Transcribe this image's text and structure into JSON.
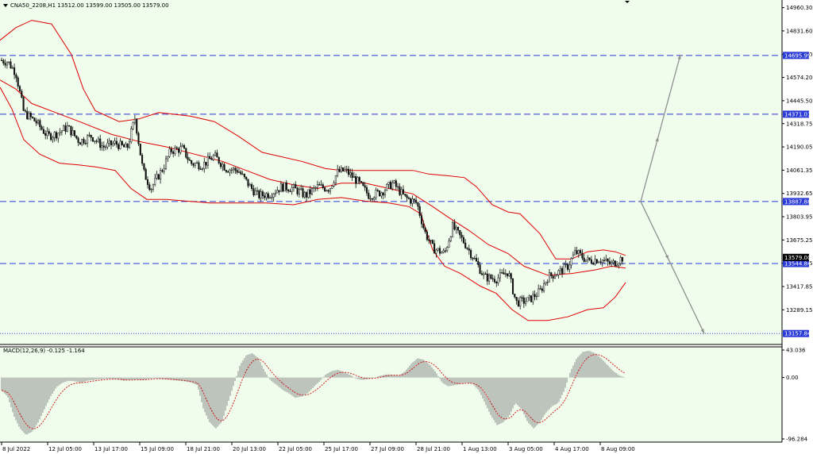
{
  "header": {
    "symbol_line": "CNA50_2208,H1  13512.00 13599.00 13505.00 13579.00"
  },
  "macd": {
    "label": "MACD(12,26,9) -0.125 -1.164",
    "y_ticks": [
      "43.036",
      "0.00",
      "-96.284"
    ]
  },
  "colors": {
    "background": "#f0fdec",
    "level_line": "#2a3bd6",
    "bands": "#e00000",
    "candle": "#111111",
    "forecast_arrow": "#909090",
    "histogram": "#8a8a8a",
    "signal": "#d02020"
  },
  "chart_data": {
    "type": "line",
    "title": "CNA50_2208,H1",
    "ohlc_last": {
      "open": 13512.0,
      "high": 13599.0,
      "low": 13505.0,
      "close": 13579.0
    },
    "y_ticks": [
      "14960.30",
      "14831.60",
      "14702.90",
      "14574.20",
      "14445.50",
      "14318.75",
      "14190.05",
      "14061.35",
      "13932.65",
      "13803.95",
      "13675.25",
      "13546.55",
      "13417.85",
      "13289.15"
    ],
    "x_ticks": [
      "8 Jul 2022",
      "12 Jul 05:00",
      "13 Jul 17:00",
      "15 Jul 09:00",
      "18 Jul 21:00",
      "20 Jul 13:00",
      "22 Jul 05:00",
      "25 Jul 17:00",
      "27 Jul 09:00",
      "28 Jul 21:00",
      "1 Aug 13:00",
      "3 Aug 05:00",
      "4 Aug 17:00",
      "8 Aug 09:00"
    ],
    "ylim": [
      13150,
      14985
    ],
    "levels": [
      {
        "value": 14695.99,
        "label": "14695.99"
      },
      {
        "value": 14371.01,
        "label": "14371.01"
      },
      {
        "value": 13887.88,
        "label": "13887.88"
      },
      {
        "value": 13544.84,
        "label": "13544.84"
      },
      {
        "value": 13157.84,
        "label": "13157.84",
        "style": "dotted"
      }
    ],
    "current_price": {
      "value": 13579.0,
      "label": "13579.00"
    },
    "price_path": [
      [
        0,
        14670
      ],
      [
        10,
        14660
      ],
      [
        20,
        14600
      ],
      [
        30,
        14380
      ],
      [
        45,
        14330
      ],
      [
        60,
        14250
      ],
      [
        70,
        14260
      ],
      [
        85,
        14300
      ],
      [
        100,
        14220
      ],
      [
        115,
        14250
      ],
      [
        130,
        14190
      ],
      [
        145,
        14210
      ],
      [
        160,
        14180
      ],
      [
        170,
        14350
      ],
      [
        180,
        14060
      ],
      [
        190,
        13960
      ],
      [
        205,
        14070
      ],
      [
        215,
        14170
      ],
      [
        230,
        14180
      ],
      [
        240,
        14100
      ],
      [
        255,
        14090
      ],
      [
        270,
        14140
      ],
      [
        285,
        14070
      ],
      [
        300,
        14060
      ],
      [
        315,
        13970
      ],
      [
        325,
        13920
      ],
      [
        340,
        13930
      ],
      [
        355,
        13970
      ],
      [
        370,
        13960
      ],
      [
        385,
        13920
      ],
      [
        400,
        13970
      ],
      [
        415,
        13960
      ],
      [
        425,
        14050
      ],
      [
        435,
        14060
      ],
      [
        450,
        14000
      ],
      [
        465,
        13920
      ],
      [
        480,
        13940
      ],
      [
        495,
        13990
      ],
      [
        510,
        13910
      ],
      [
        525,
        13880
      ],
      [
        535,
        13720
      ],
      [
        545,
        13630
      ],
      [
        560,
        13600
      ],
      [
        570,
        13750
      ],
      [
        585,
        13660
      ],
      [
        600,
        13550
      ],
      [
        610,
        13470
      ],
      [
        625,
        13460
      ],
      [
        640,
        13500
      ],
      [
        650,
        13330
      ],
      [
        665,
        13340
      ],
      [
        680,
        13390
      ],
      [
        690,
        13470
      ],
      [
        705,
        13500
      ],
      [
        715,
        13530
      ],
      [
        725,
        13610
      ],
      [
        740,
        13560
      ],
      [
        755,
        13570
      ],
      [
        770,
        13540
      ],
      [
        785,
        13579
      ]
    ],
    "bollinger_upper": [
      [
        0,
        14780
      ],
      [
        20,
        14850
      ],
      [
        40,
        14890
      ],
      [
        65,
        14870
      ],
      [
        90,
        14700
      ],
      [
        105,
        14510
      ],
      [
        120,
        14390
      ],
      [
        150,
        14330
      ],
      [
        175,
        14345
      ],
      [
        200,
        14380
      ],
      [
        240,
        14360
      ],
      [
        270,
        14330
      ],
      [
        300,
        14250
      ],
      [
        330,
        14160
      ],
      [
        350,
        14140
      ],
      [
        380,
        14110
      ],
      [
        410,
        14070
      ],
      [
        430,
        14060
      ],
      [
        460,
        14060
      ],
      [
        500,
        14060
      ],
      [
        520,
        14060
      ],
      [
        540,
        14040
      ],
      [
        565,
        14030
      ],
      [
        585,
        14020
      ],
      [
        600,
        13970
      ],
      [
        620,
        13870
      ],
      [
        640,
        13830
      ],
      [
        655,
        13820
      ],
      [
        680,
        13710
      ],
      [
        700,
        13570
      ],
      [
        720,
        13570
      ],
      [
        740,
        13610
      ],
      [
        760,
        13620
      ],
      [
        775,
        13610
      ],
      [
        788,
        13590
      ]
    ],
    "bollinger_middle": [
      [
        0,
        14560
      ],
      [
        20,
        14510
      ],
      [
        40,
        14430
      ],
      [
        70,
        14380
      ],
      [
        100,
        14330
      ],
      [
        140,
        14260
      ],
      [
        175,
        14220
      ],
      [
        210,
        14190
      ],
      [
        245,
        14150
      ],
      [
        280,
        14110
      ],
      [
        310,
        14060
      ],
      [
        340,
        14010
      ],
      [
        370,
        13980
      ],
      [
        400,
        13960
      ],
      [
        430,
        13990
      ],
      [
        460,
        13990
      ],
      [
        490,
        13960
      ],
      [
        520,
        13930
      ],
      [
        545,
        13860
      ],
      [
        565,
        13800
      ],
      [
        590,
        13730
      ],
      [
        615,
        13650
      ],
      [
        640,
        13600
      ],
      [
        660,
        13530
      ],
      [
        690,
        13480
      ],
      [
        720,
        13490
      ],
      [
        750,
        13510
      ],
      [
        770,
        13530
      ],
      [
        788,
        13520
      ]
    ],
    "bollinger_lower": [
      [
        0,
        14520
      ],
      [
        15,
        14400
      ],
      [
        30,
        14230
      ],
      [
        50,
        14150
      ],
      [
        75,
        14100
      ],
      [
        100,
        14090
      ],
      [
        120,
        14080
      ],
      [
        145,
        14060
      ],
      [
        165,
        13960
      ],
      [
        185,
        13900
      ],
      [
        210,
        13900
      ],
      [
        235,
        13890
      ],
      [
        265,
        13880
      ],
      [
        300,
        13880
      ],
      [
        335,
        13880
      ],
      [
        370,
        13870
      ],
      [
        400,
        13900
      ],
      [
        430,
        13910
      ],
      [
        460,
        13890
      ],
      [
        490,
        13880
      ],
      [
        515,
        13860
      ],
      [
        530,
        13820
      ],
      [
        545,
        13620
      ],
      [
        560,
        13530
      ],
      [
        580,
        13490
      ],
      [
        605,
        13420
      ],
      [
        625,
        13380
      ],
      [
        645,
        13290
      ],
      [
        665,
        13230
      ],
      [
        690,
        13230
      ],
      [
        715,
        13250
      ],
      [
        740,
        13290
      ],
      [
        760,
        13300
      ],
      [
        775,
        13360
      ],
      [
        788,
        13440
      ]
    ],
    "forecast_arrows": [
      {
        "from": [
          807,
          13887.88
        ],
        "to": [
          857,
          14700
        ]
      },
      {
        "from": [
          807,
          13887.88
        ],
        "to": [
          887,
          13157.84
        ]
      }
    ],
    "macd_histogram": [
      -20,
      -30,
      -60,
      -80,
      -90,
      -85,
      -70,
      -50,
      -30,
      -15,
      -8,
      -5,
      -6,
      -8,
      -5,
      -4,
      -3,
      -2,
      -2,
      -3,
      -5,
      -4,
      -3,
      -4,
      -2,
      -1,
      -2,
      -3,
      -4,
      -5,
      -6,
      -8,
      -12,
      -50,
      -70,
      -80,
      -70,
      -40,
      -10,
      20,
      35,
      38,
      30,
      10,
      -5,
      -12,
      -20,
      -25,
      -32,
      -30,
      -25,
      -15,
      -6,
      5,
      10,
      12,
      8,
      4,
      -2,
      -4,
      -2,
      0,
      3,
      5,
      4,
      3,
      10,
      22,
      30,
      28,
      20,
      8,
      -8,
      -14,
      -12,
      -10,
      -8,
      -10,
      -20,
      -40,
      -60,
      -75,
      -70,
      -60,
      -40,
      -50,
      -70,
      -80,
      -70,
      -55,
      -45,
      -40,
      -20,
      10,
      30,
      40,
      42,
      38,
      30,
      20,
      10,
      3,
      0
    ]
  }
}
